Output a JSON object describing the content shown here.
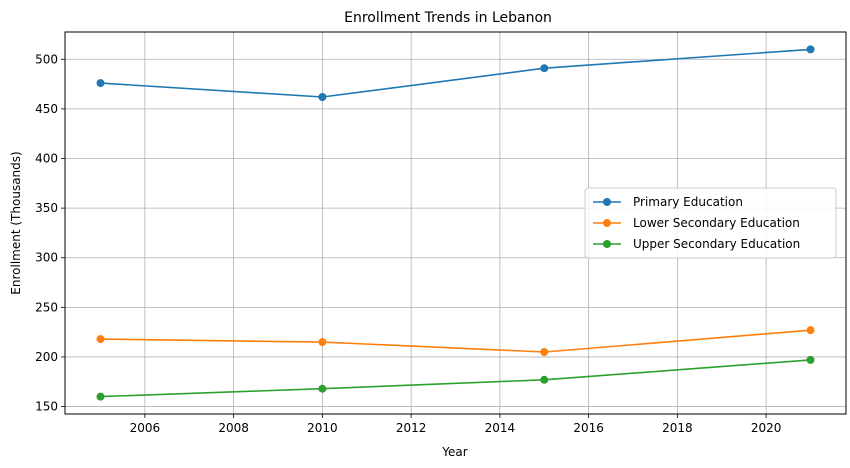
{
  "chart_data": {
    "type": "line",
    "title": "Enrollment Trends in Lebanon",
    "xlabel": "Year",
    "ylabel": "Enrollment (Thousands)",
    "x": [
      2005,
      2010,
      2015,
      2021
    ],
    "xlim": [
      2004.2,
      2021.8
    ],
    "ylim": [
      142.5,
      527.5
    ],
    "xticks": [
      2006,
      2008,
      2010,
      2012,
      2014,
      2016,
      2018,
      2020
    ],
    "yticks": [
      150,
      200,
      250,
      300,
      350,
      400,
      450,
      500
    ],
    "grid": true,
    "legend_position": "center-right",
    "series": [
      {
        "name": "Primary Education",
        "color": "#1f77b4",
        "values": [
          476,
          462,
          491,
          510
        ]
      },
      {
        "name": "Lower Secondary Education",
        "color": "#ff7f0e",
        "values": [
          218,
          215,
          205,
          227
        ]
      },
      {
        "name": "Upper Secondary Education",
        "color": "#2ca02c",
        "values": [
          160,
          168,
          177,
          197
        ]
      }
    ]
  }
}
